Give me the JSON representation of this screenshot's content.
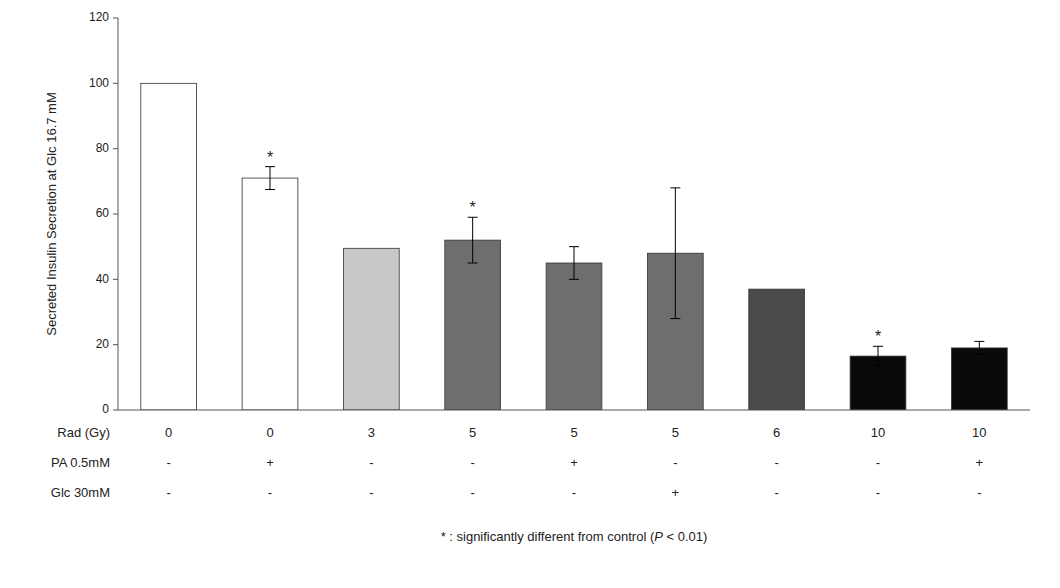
{
  "chart_data": {
    "type": "bar",
    "categories": [
      null,
      null,
      null,
      null,
      null,
      null,
      null,
      null,
      null
    ],
    "values": [
      100,
      71,
      49.5,
      52,
      45,
      48,
      37,
      16.5,
      19
    ],
    "errors": [
      0,
      3.5,
      0,
      7,
      5,
      20,
      0,
      3,
      2
    ],
    "colors": [
      "#ffffff",
      "#ffffff",
      "#c8c8c8",
      "#6e6e6e",
      "#6e6e6e",
      "#6e6e6e",
      "#4a4a4a",
      "#0a0a0a",
      "#0a0a0a"
    ],
    "significant": [
      false,
      true,
      false,
      true,
      false,
      false,
      false,
      true,
      false
    ],
    "significance_label": "*",
    "y_label": "Secreted Insulin Secretion at Glc 16.7 mM",
    "ylim": [
      0,
      120
    ],
    "yticks": [
      0,
      20,
      40,
      60,
      80,
      100,
      120
    ],
    "grid": false,
    "table": [
      {
        "label": "Rad (Gy)",
        "values": [
          "0",
          "0",
          "3",
          "5",
          "5",
          "5",
          "6",
          "10",
          "10"
        ]
      },
      {
        "label": "PA 0.5mM",
        "values": [
          "-",
          "+",
          "-",
          "-",
          "+",
          "-",
          "-",
          "-",
          "+"
        ]
      },
      {
        "label": "Glc 30mM",
        "values": [
          "-",
          "-",
          "-",
          "-",
          "-",
          "+",
          "-",
          "-",
          "-"
        ]
      }
    ],
    "footnote": {
      "prefix": "* : significantly different from control (",
      "italic": "P",
      "suffix": " < 0.01)"
    }
  }
}
